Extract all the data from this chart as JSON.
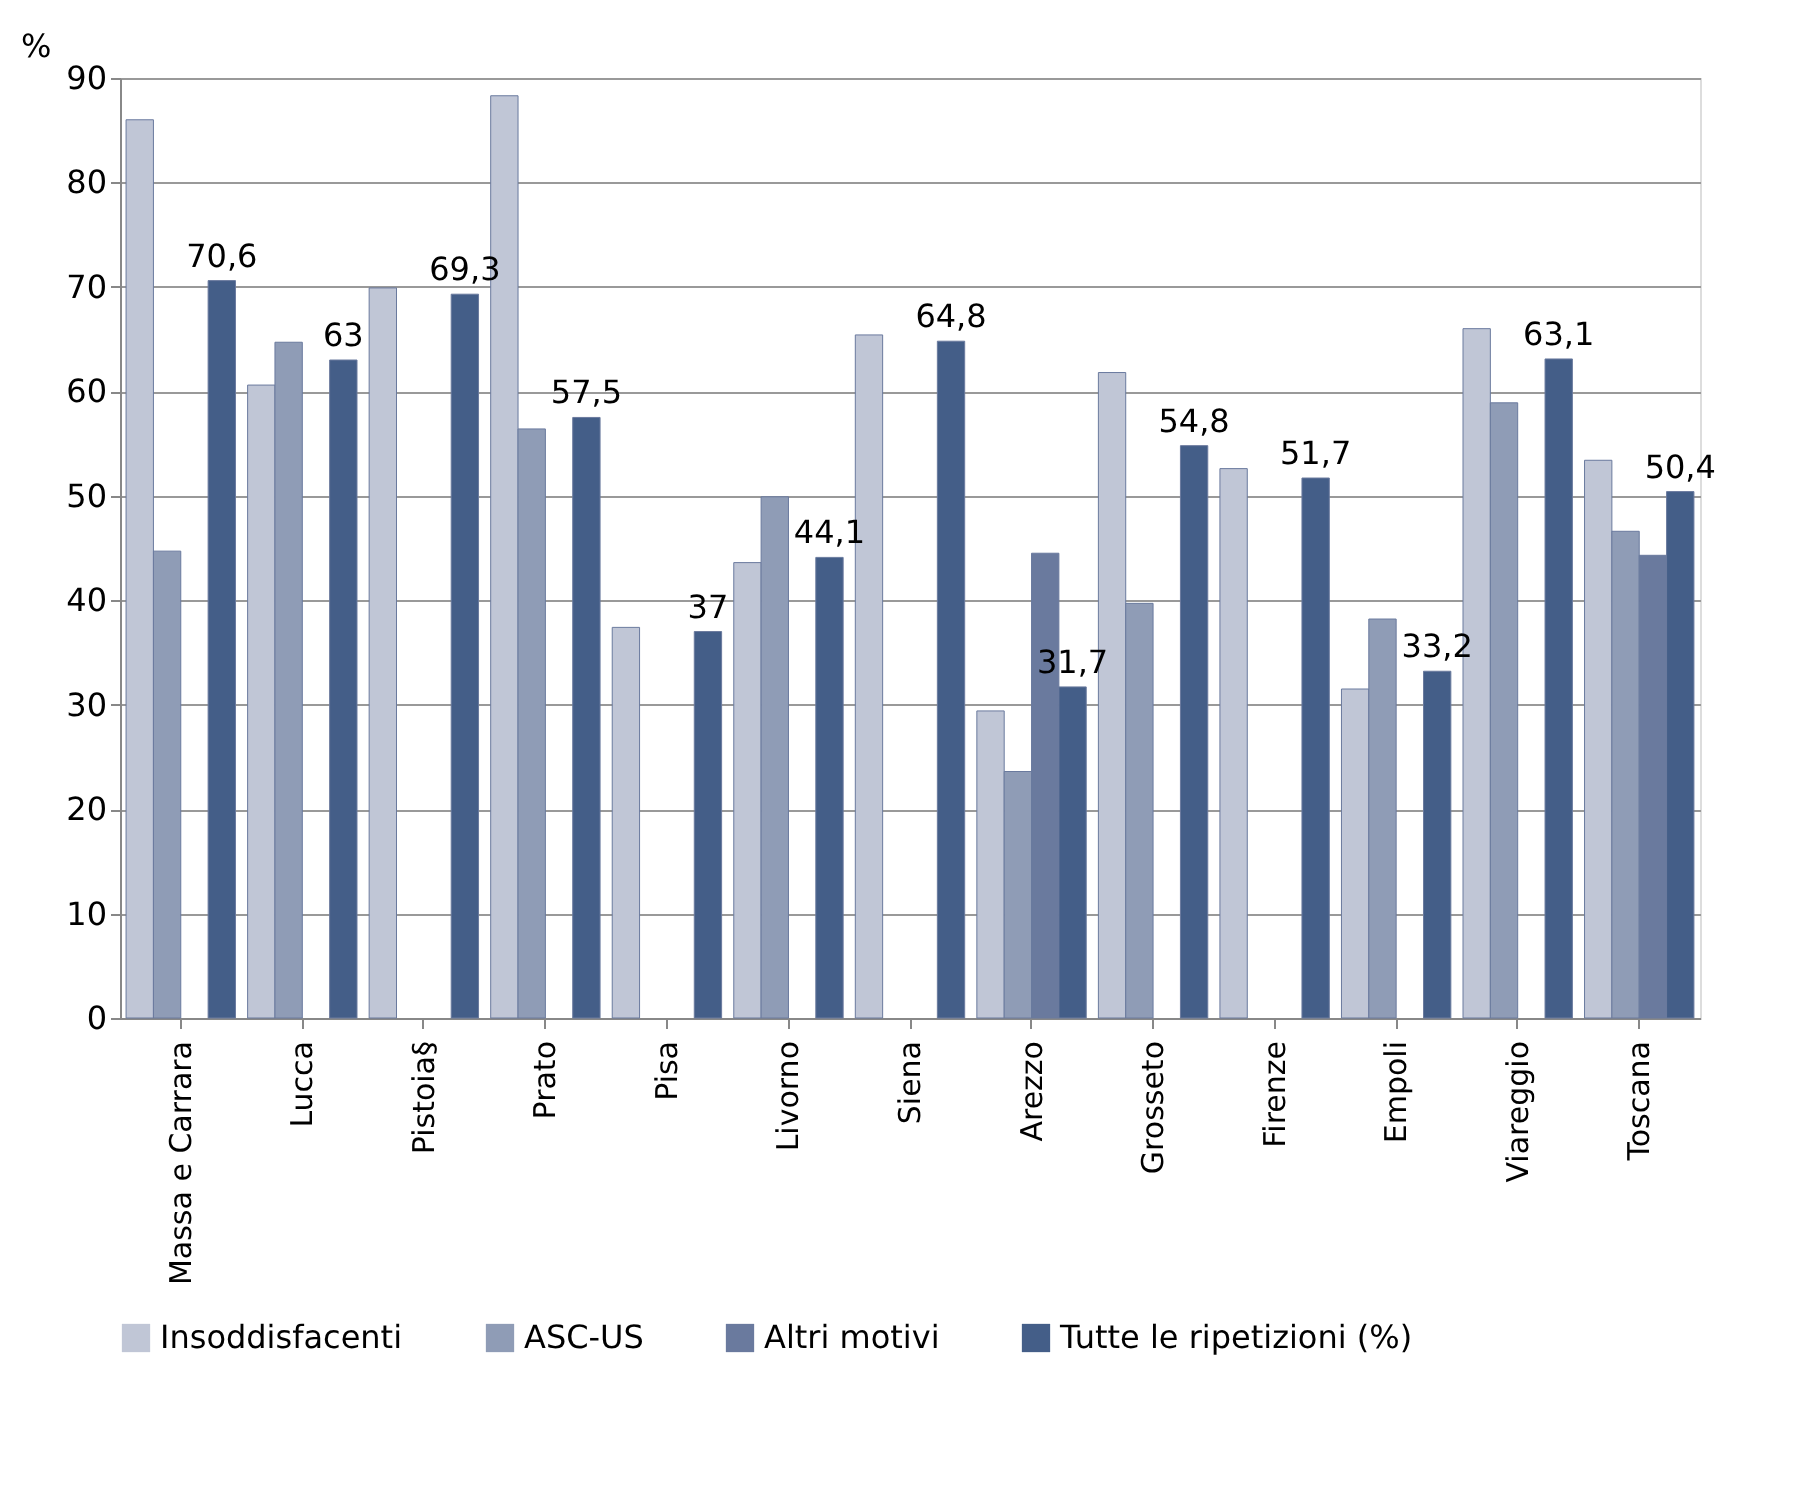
{
  "chart_data": {
    "type": "bar",
    "ylabel": "%",
    "categories": [
      "Massa e Carrara",
      "Lucca",
      "Pistoia§",
      "Prato",
      "Pisa",
      "Livorno",
      "Siena",
      "Arezzo",
      "Grosseto",
      "Firenze",
      "Empoli",
      "Viareggio",
      "Toscana"
    ],
    "series": [
      {
        "name": "Insoddisfacenti",
        "color": "#c0c6d6",
        "values": [
          86,
          60.6,
          69.9,
          88.3,
          37.4,
          43.6,
          65.4,
          29.4,
          61.8,
          52.6,
          31.5,
          66,
          53.4
        ]
      },
      {
        "name": "ASC-US",
        "color": "#8f9cb6",
        "values": [
          44.7,
          64.7,
          null,
          56.4,
          null,
          49.9,
          null,
          23.6,
          39.7,
          null,
          38.2,
          58.9,
          46.6
        ]
      },
      {
        "name": "Altri motivi",
        "color": "#6a7a9e",
        "values": [
          null,
          null,
          null,
          null,
          null,
          null,
          null,
          44.5,
          null,
          null,
          null,
          null,
          44.3
        ]
      },
      {
        "name": "Tutte le ripetizioni (%)",
        "color": "#445e88",
        "values": [
          70.6,
          63,
          69.3,
          57.5,
          37,
          44.1,
          64.8,
          31.7,
          54.8,
          51.7,
          33.2,
          63.1,
          50.4
        ],
        "value_labels": [
          "70,6",
          "63",
          "69,3",
          "57,5",
          "37",
          "44,1",
          "64,8",
          "31,7",
          "54,8",
          "51,7",
          "33,2",
          "63,1",
          "50,4"
        ]
      }
    ],
    "ylim": [
      0,
      90
    ],
    "yticks": [
      0,
      10,
      20,
      30,
      40,
      50,
      60,
      70,
      80,
      90
    ],
    "grid": "y",
    "legend": "bottom"
  }
}
